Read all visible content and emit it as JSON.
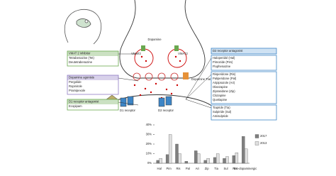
{
  "diagram": {
    "dopamine": "Dopamine",
    "vmat_labels": [
      "VMAT2",
      "VMAT2"
    ],
    "transporter": "Dopamine Transporter",
    "receptors": [
      "D1 receptor",
      "D2 receptor"
    ],
    "left_boxes": [
      {
        "header": "VMAT 2 inhibitor",
        "items": [
          "Tetrabenazine (Tet)",
          "Deutetrabenazine"
        ]
      },
      {
        "header": "Dopamine agonists",
        "items": [
          "Pergolide",
          "Ropinirole",
          "Pramipexole"
        ]
      },
      {
        "header": "D1 receptor antagonist",
        "items": [
          "Ecopipam"
        ]
      }
    ],
    "right_box": {
      "header": "D2 receptor antagonist",
      "groups": [
        [
          "Haloperidol (Hal)",
          "Pimozide (Pim)",
          "Fluphenazine"
        ],
        [
          "Risperidone (Ris)",
          "Paliperidone (Pal)",
          "Aripiprazole (Ari)",
          "Olanzapine",
          "Ziprasidone (Zip)",
          "Clozapine",
          "Quetiapine"
        ],
        [
          "Tiapride (Tia)",
          "Sulpiride (Sul)",
          "Amisulpride"
        ]
      ]
    }
  },
  "chart_data": {
    "type": "bar",
    "categories": [
      "Hal",
      "Pim",
      "Ris",
      "Pal",
      "Ari",
      "Zip",
      "Tia",
      "Sul",
      "Tet",
      "Non-dopaminergic"
    ],
    "series": [
      {
        "name": "2017",
        "color": "#7f7f7f",
        "values": [
          3,
          9,
          20,
          2,
          13,
          3,
          6,
          5,
          8,
          28
        ]
      },
      {
        "name": "2013",
        "color": "#e0e0e0",
        "values": [
          5,
          30,
          10,
          0,
          10,
          5,
          10,
          7,
          11,
          15
        ]
      }
    ],
    "ylim": [
      0,
      40
    ],
    "yticks": [
      {
        "value": 0,
        "label": "0%"
      },
      {
        "value": 10,
        "label": "10%"
      },
      {
        "value": 20,
        "label": "20%"
      },
      {
        "value": 30,
        "label": "30%"
      },
      {
        "value": 40,
        "label": "40%"
      }
    ]
  }
}
